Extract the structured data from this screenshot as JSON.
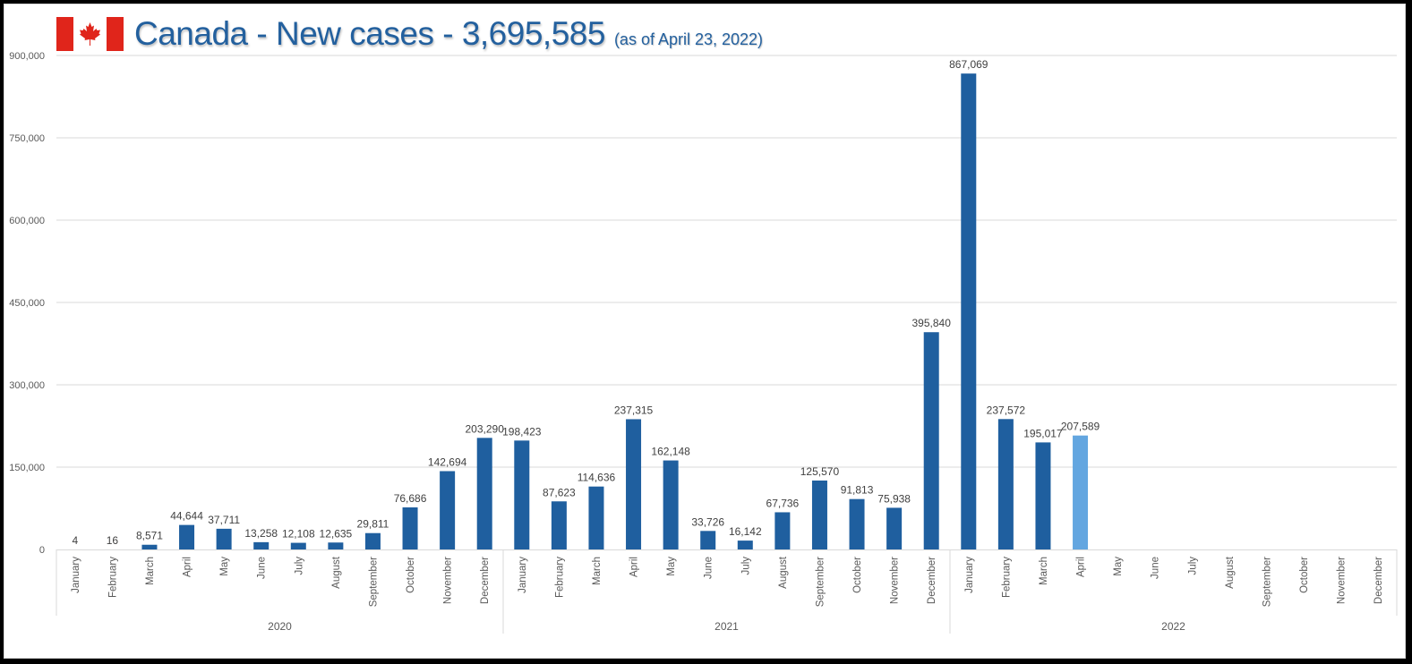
{
  "header": {
    "flag_icon": "canada-flag-icon",
    "title": "Canada - New cases - 3,695,585",
    "subtitle": "(as of April 23, 2022)"
  },
  "colors": {
    "bar": "#1f5f9f",
    "highlight_bar": "#63a6e0",
    "title": "#23609e",
    "gridline": "#d9d9d9",
    "flag_red": "#e0251b"
  },
  "chart_data": {
    "type": "bar",
    "title": "Canada - New cases - 3,695,585 (as of April 23, 2022)",
    "xlabel": "",
    "ylabel": "",
    "ylim": [
      0,
      900000
    ],
    "yticks": [
      0,
      150000,
      300000,
      450000,
      600000,
      750000,
      900000
    ],
    "ytick_labels": [
      "0",
      "150,000",
      "300,000",
      "450,000",
      "600,000",
      "750,000",
      "900,000"
    ],
    "grid": true,
    "legend": "none",
    "groups": [
      {
        "year": "2020",
        "months": [
          "January",
          "February",
          "March",
          "April",
          "May",
          "June",
          "July",
          "August",
          "September",
          "October",
          "November",
          "December"
        ],
        "values": [
          4,
          16,
          8571,
          44644,
          37711,
          13258,
          12108,
          12635,
          29811,
          76686,
          142694,
          203290
        ],
        "labels": [
          "4",
          "16",
          "8,571",
          "44,644",
          "37,711",
          "13,258",
          "12,108",
          "12,635",
          "29,811",
          "76,686",
          "142,694",
          "203,290"
        ]
      },
      {
        "year": "2021",
        "months": [
          "January",
          "February",
          "March",
          "April",
          "May",
          "June",
          "July",
          "August",
          "September",
          "October",
          "November",
          "December"
        ],
        "values": [
          198423,
          87623,
          114636,
          237315,
          162148,
          33726,
          16142,
          67736,
          125570,
          91813,
          75938,
          395840
        ],
        "labels": [
          "198,423",
          "87,623",
          "114,636",
          "237,315",
          "162,148",
          "33,726",
          "16,142",
          "67,736",
          "125,570",
          "91,813",
          "75,938",
          "395,840"
        ]
      },
      {
        "year": "2022",
        "months": [
          "January",
          "February",
          "March",
          "April",
          "May",
          "June",
          "July",
          "August",
          "September",
          "October",
          "November",
          "December"
        ],
        "values": [
          867069,
          237572,
          195017,
          207589,
          null,
          null,
          null,
          null,
          null,
          null,
          null,
          null
        ],
        "labels": [
          "867,069",
          "237,572",
          "195,017",
          "207,589",
          "",
          "",
          "",
          "",
          "",
          "",
          "",
          ""
        ],
        "highlight_index": 3
      }
    ]
  }
}
